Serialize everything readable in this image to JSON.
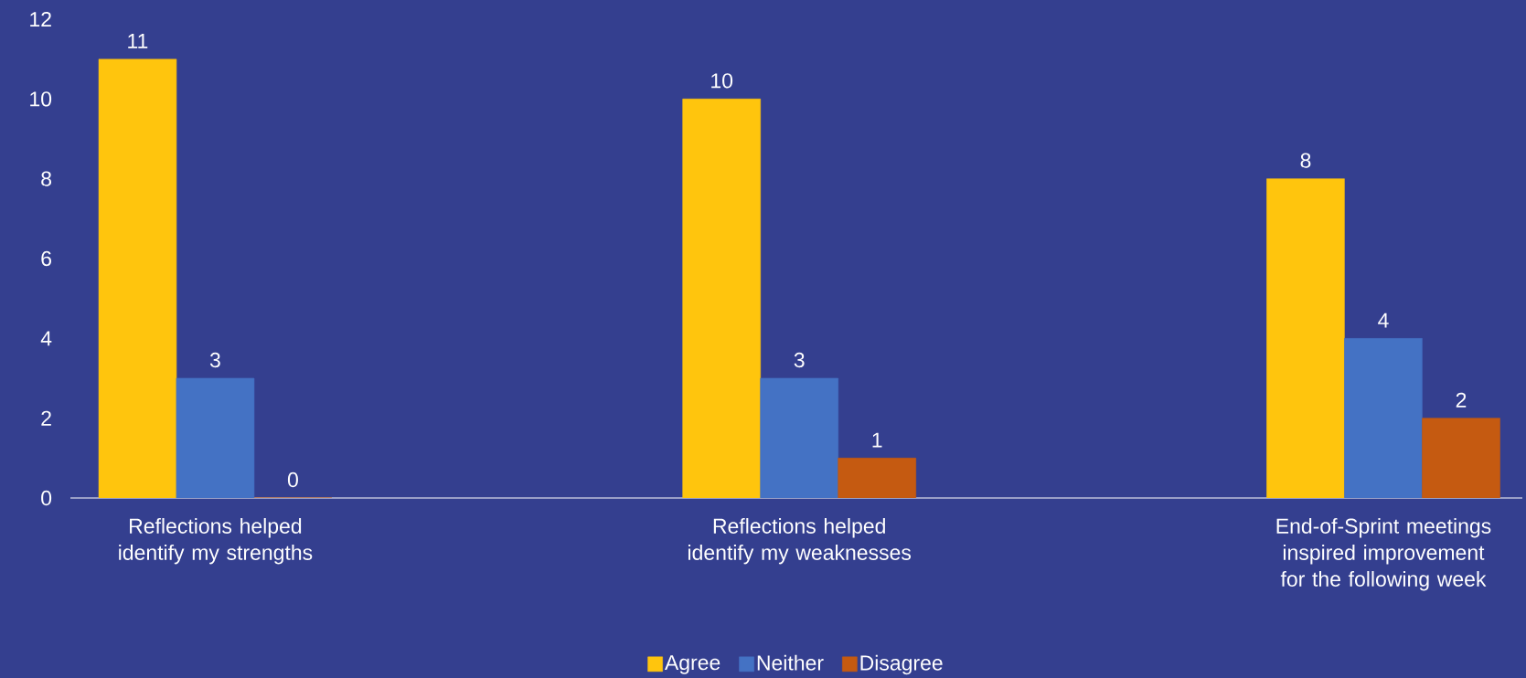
{
  "chart_data": {
    "type": "bar",
    "categories": [
      "Reflections helped identify my strengths",
      "Reflections helped identify my weaknesses",
      "End-of-Sprint meetings inspired improvement for the following week"
    ],
    "series": [
      {
        "name": "Agree",
        "color": "#ffc50d",
        "values": [
          11,
          10,
          8
        ]
      },
      {
        "name": "Neither",
        "color": "#4472c4",
        "values": [
          3,
          3,
          4
        ]
      },
      {
        "name": "Disagree",
        "color": "#c55a11",
        "values": [
          0,
          1,
          2
        ]
      }
    ],
    "ylim": [
      0,
      12
    ],
    "yticks": [
      0,
      2,
      4,
      6,
      8,
      10,
      12
    ],
    "grid": false,
    "legend": "bottom",
    "data_labels": true
  }
}
